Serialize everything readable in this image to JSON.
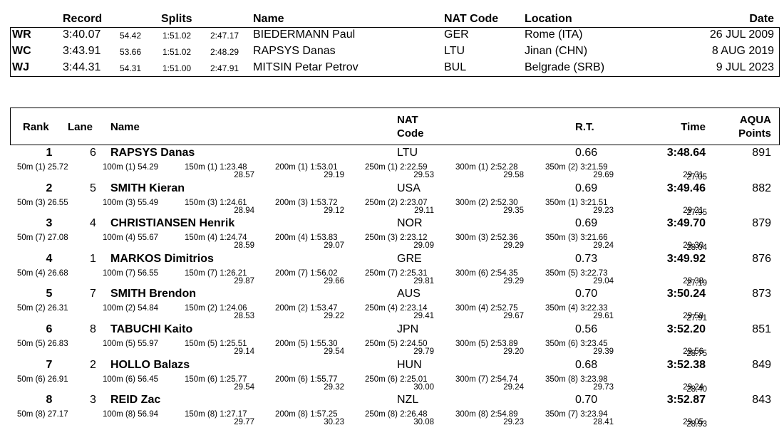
{
  "records": {
    "headers": {
      "record": "Record",
      "splits": "Splits",
      "name": "Name",
      "nat": "NAT Code",
      "location": "Location",
      "date": "Date"
    },
    "rows": [
      {
        "type": "WR",
        "time": "3:40.07",
        "s1": "54.42",
        "s2": "1:51.02",
        "s3": "2:47.17",
        "name": "BIEDERMANN Paul",
        "nat": "GER",
        "location": "Rome (ITA)",
        "date": "26 JUL 2009"
      },
      {
        "type": "WC",
        "time": "3:43.91",
        "s1": "53.66",
        "s2": "1:51.02",
        "s3": "2:48.29",
        "name": "RAPSYS Danas",
        "nat": "LTU",
        "location": "Jinan (CHN)",
        "date": "8 AUG 2019"
      },
      {
        "type": "WJ",
        "time": "3:44.31",
        "s1": "54.31",
        "s2": "1:51.00",
        "s3": "2:47.91",
        "name": "MITSIN Petar Petrov",
        "nat": "BUL",
        "location": "Belgrade (SRB)",
        "date": "9 JUL 2023"
      }
    ]
  },
  "results": {
    "headers": {
      "rank": "Rank",
      "lane": "Lane",
      "name": "Name",
      "nat_line1": "NAT",
      "nat_line2": "Code",
      "rt": "R.T.",
      "time": "Time",
      "points_line1": "AQUA",
      "points_line2": "Points"
    },
    "rows": [
      {
        "rank": "1",
        "lane": "6",
        "name": "RAPSYS Danas",
        "nat": "LTU",
        "rt": "0.66",
        "time": "3:48.64",
        "points": "891",
        "splits": [
          "50m (1) 25.72",
          "100m (1) 54.29",
          "150m (1) 1:23.48",
          "200m (1) 1:53.01",
          "250m (1) 2:22.59",
          "300m (1) 2:52.28",
          "350m (2) 3:21.59"
        ],
        "laps": [
          "28.57",
          "29.19",
          "29.53",
          "29.58",
          "29.69",
          "29.31",
          "27.05"
        ]
      },
      {
        "rank": "2",
        "lane": "5",
        "name": "SMITH Kieran",
        "nat": "USA",
        "rt": "0.69",
        "time": "3:49.46",
        "points": "882",
        "splits": [
          "50m (3) 26.55",
          "100m (3) 55.49",
          "150m (3) 1:24.61",
          "200m (3) 1:53.72",
          "250m (2) 2:23.07",
          "300m (2) 2:52.30",
          "350m (1) 3:21.51"
        ],
        "laps": [
          "28.94",
          "29.12",
          "29.11",
          "29.35",
          "29.23",
          "29.21",
          "27.95"
        ]
      },
      {
        "rank": "3",
        "lane": "4",
        "name": "CHRISTIANSEN Henrik",
        "nat": "NOR",
        "rt": "0.69",
        "time": "3:49.70",
        "points": "879",
        "splits": [
          "50m (7) 27.08",
          "100m (4) 55.67",
          "150m (4) 1:24.74",
          "200m (4) 1:53.83",
          "250m (3) 2:23.12",
          "300m (3) 2:52.36",
          "350m (3) 3:21.66"
        ],
        "laps": [
          "28.59",
          "29.07",
          "29.09",
          "29.29",
          "29.24",
          "29.30",
          "28.04"
        ]
      },
      {
        "rank": "4",
        "lane": "1",
        "name": "MARKOS Dimitrios",
        "nat": "GRE",
        "rt": "0.73",
        "time": "3:49.92",
        "points": "876",
        "splits": [
          "50m (4) 26.68",
          "100m (7) 56.55",
          "150m (7) 1:26.21",
          "200m (7) 1:56.02",
          "250m (7) 2:25.31",
          "300m (6) 2:54.35",
          "350m (5) 3:22.73"
        ],
        "laps": [
          "29.87",
          "29.66",
          "29.81",
          "29.29",
          "29.04",
          "28.38",
          "27.19"
        ]
      },
      {
        "rank": "5",
        "lane": "7",
        "name": "SMITH Brendon",
        "nat": "AUS",
        "rt": "0.70",
        "time": "3:50.24",
        "points": "873",
        "splits": [
          "50m (2) 26.31",
          "100m (2) 54.84",
          "150m (2) 1:24.06",
          "200m (2) 1:53.47",
          "250m (4) 2:23.14",
          "300m (4) 2:52.75",
          "350m (4) 3:22.33"
        ],
        "laps": [
          "28.53",
          "29.22",
          "29.41",
          "29.67",
          "29.61",
          "29.58",
          "27.91"
        ]
      },
      {
        "rank": "6",
        "lane": "8",
        "name": "TABUCHI Kaito",
        "nat": "JPN",
        "rt": "0.56",
        "time": "3:52.20",
        "points": "851",
        "splits": [
          "50m (5) 26.83",
          "100m (5) 55.97",
          "150m (5) 1:25.51",
          "200m (5) 1:55.30",
          "250m (5) 2:24.50",
          "300m (5) 2:53.89",
          "350m (6) 3:23.45"
        ],
        "laps": [
          "29.14",
          "29.54",
          "29.79",
          "29.20",
          "29.39",
          "29.56",
          "28.75"
        ]
      },
      {
        "rank": "7",
        "lane": "2",
        "name": "HOLLO Balazs",
        "nat": "HUN",
        "rt": "0.68",
        "time": "3:52.38",
        "points": "849",
        "splits": [
          "50m (6) 26.91",
          "100m (6) 56.45",
          "150m (6) 1:25.77",
          "200m (6) 1:55.77",
          "250m (6) 2:25.01",
          "300m (7) 2:54.74",
          "350m (8) 3:23.98"
        ],
        "laps": [
          "29.54",
          "29.32",
          "30.00",
          "29.24",
          "29.73",
          "29.24",
          "28.40"
        ]
      },
      {
        "rank": "8",
        "lane": "3",
        "name": "REID Zac",
        "nat": "NZL",
        "rt": "0.70",
        "time": "3:52.87",
        "points": "843",
        "splits": [
          "50m (8) 27.17",
          "100m (8) 56.94",
          "150m (8) 1:27.17",
          "200m (8) 1:57.25",
          "250m (8) 2:26.48",
          "300m (8) 2:54.89",
          "350m (7) 3:23.94"
        ],
        "laps": [
          "29.77",
          "30.23",
          "30.08",
          "29.23",
          "28.41",
          "29.05",
          "28.93"
        ]
      }
    ]
  }
}
